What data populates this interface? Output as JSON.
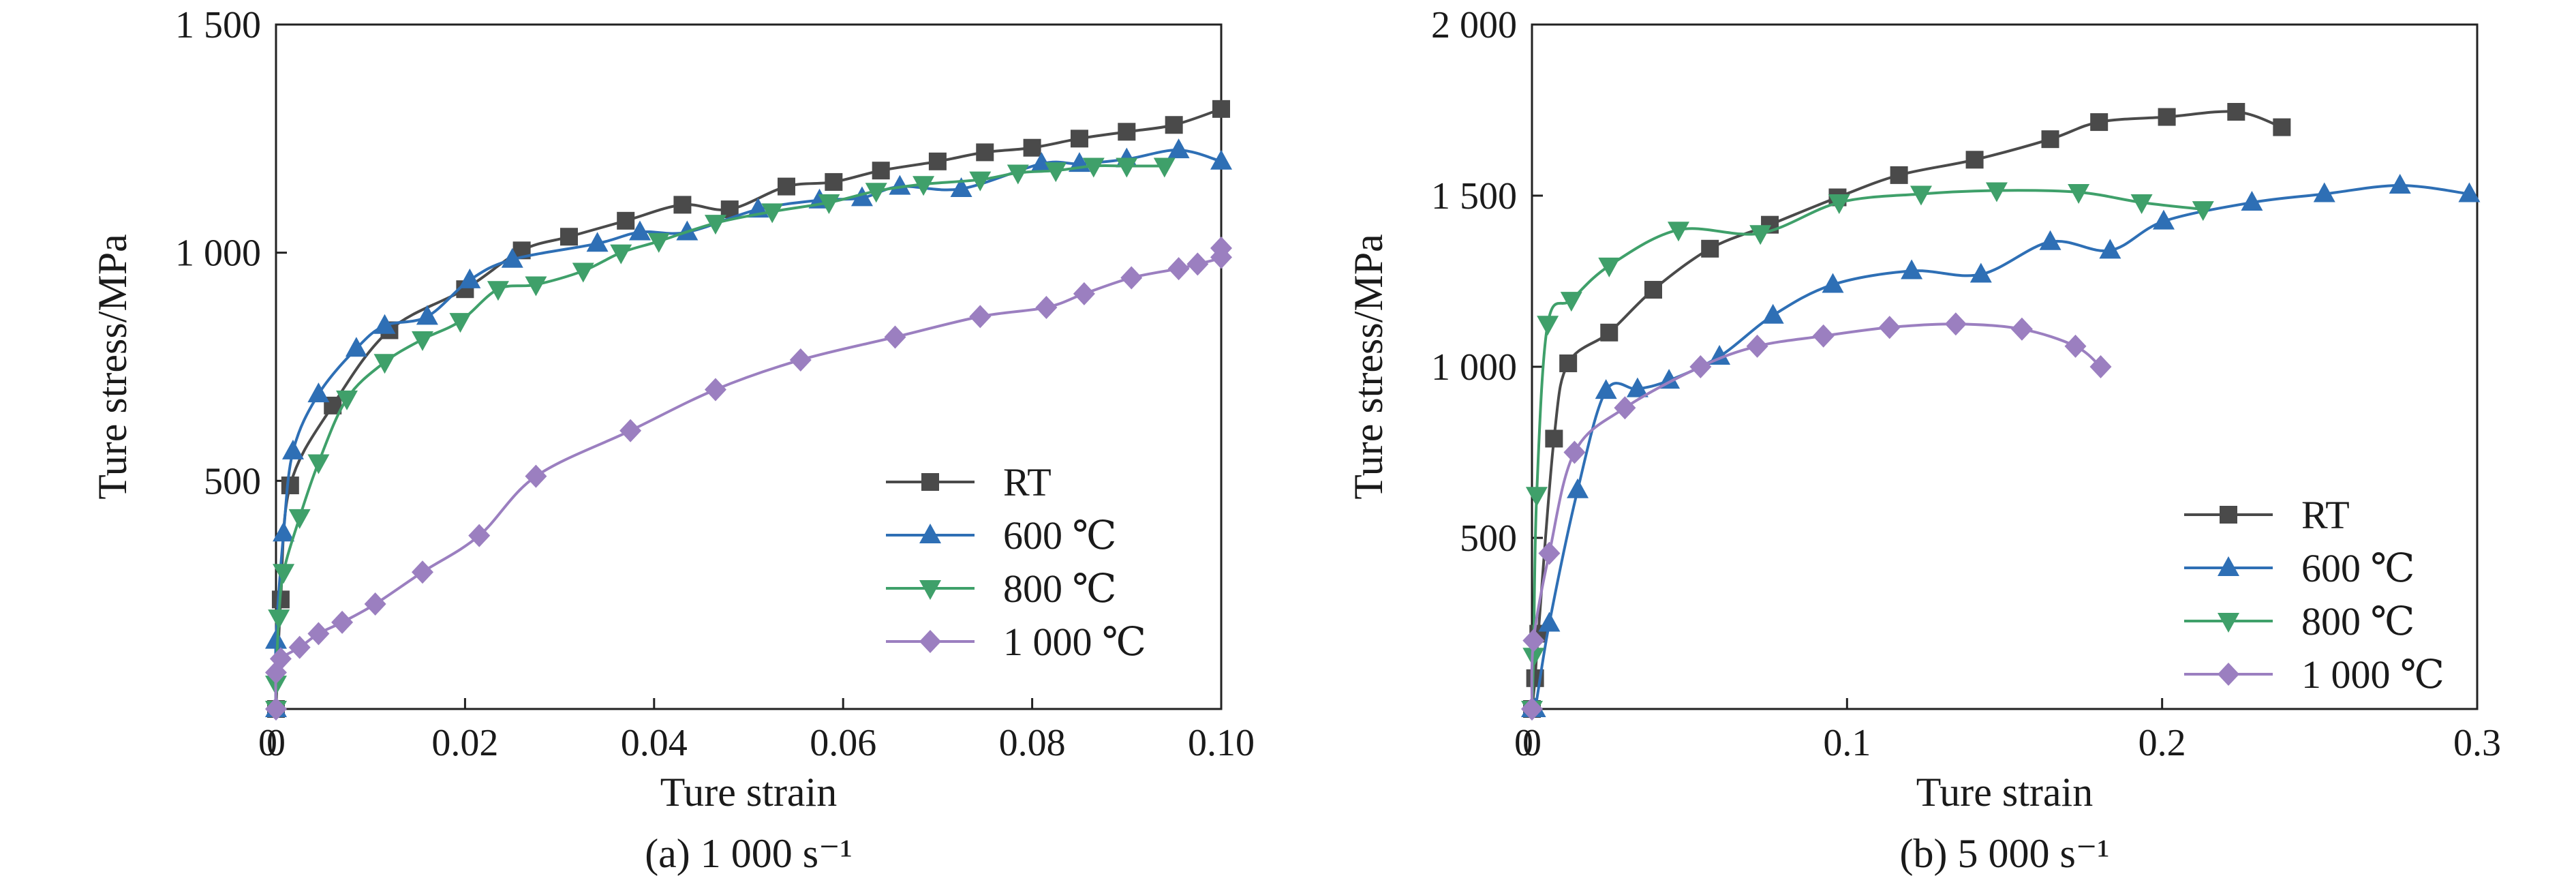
{
  "figure": {
    "captions": [
      "(a) 1 000 s⁻¹",
      "(b) 5 000 s⁻¹"
    ]
  },
  "chart_data": [
    {
      "type": "line",
      "caption": "(a) 1 000 s⁻¹",
      "xlabel": "Ture strain",
      "ylabel": "Ture stress/MPa",
      "xlim": [
        0,
        0.1
      ],
      "ylim": [
        0,
        1500
      ],
      "x_ticks": [
        0,
        0.02,
        0.04,
        0.06,
        0.08,
        0.1
      ],
      "x_tick_labels": [
        "0",
        "0.02",
        "0.04",
        "0.06",
        "0.08",
        "0.10"
      ],
      "y_ticks": [
        500,
        1000,
        1500
      ],
      "y_tick_labels": [
        "500",
        "1 000",
        "1 500"
      ],
      "grid": false,
      "legend_position": "bottom-right",
      "series": [
        {
          "name": "RT",
          "color": "#4a4a4a",
          "marker": "square",
          "points": [
            [
              0.0,
              0
            ],
            [
              0.0005,
              240
            ],
            [
              0.0015,
              490
            ],
            [
              0.006,
              665
            ],
            [
              0.012,
              830
            ],
            [
              0.02,
              920
            ],
            [
              0.026,
              1005
            ],
            [
              0.031,
              1035
            ],
            [
              0.037,
              1070
            ],
            [
              0.043,
              1105
            ],
            [
              0.048,
              1095
            ],
            [
              0.054,
              1145
            ],
            [
              0.059,
              1155
            ],
            [
              0.064,
              1180
            ],
            [
              0.07,
              1200
            ],
            [
              0.075,
              1220
            ],
            [
              0.08,
              1230
            ],
            [
              0.085,
              1250
            ],
            [
              0.09,
              1265
            ],
            [
              0.095,
              1280
            ],
            [
              0.1,
              1315
            ]
          ]
        },
        {
          "name": "600 ℃",
          "color": "#2e6fb5",
          "marker": "triangle-up",
          "points": [
            [
              0.0,
              0
            ],
            [
              0.0,
              150
            ],
            [
              0.0008,
              385
            ],
            [
              0.0018,
              565
            ],
            [
              0.0045,
              690
            ],
            [
              0.0085,
              790
            ],
            [
              0.0115,
              840
            ],
            [
              0.016,
              860
            ],
            [
              0.0205,
              940
            ],
            [
              0.025,
              985
            ],
            [
              0.034,
              1020
            ],
            [
              0.0385,
              1045
            ],
            [
              0.0435,
              1045
            ],
            [
              0.051,
              1095
            ],
            [
              0.0575,
              1115
            ],
            [
              0.062,
              1120
            ],
            [
              0.066,
              1145
            ],
            [
              0.0725,
              1140
            ],
            [
              0.081,
              1195
            ],
            [
              0.085,
              1195
            ],
            [
              0.09,
              1205
            ],
            [
              0.0955,
              1225
            ],
            [
              0.1,
              1200
            ]
          ]
        },
        {
          "name": "800 ℃",
          "color": "#3fa06a",
          "marker": "triangle-down",
          "points": [
            [
              0.0,
              0
            ],
            [
              0.0,
              55
            ],
            [
              0.0003,
              200
            ],
            [
              0.0008,
              300
            ],
            [
              0.0025,
              420
            ],
            [
              0.0045,
              540
            ],
            [
              0.0075,
              680
            ],
            [
              0.0115,
              760
            ],
            [
              0.0155,
              810
            ],
            [
              0.0195,
              850
            ],
            [
              0.0235,
              920
            ],
            [
              0.0275,
              930
            ],
            [
              0.0325,
              960
            ],
            [
              0.0365,
              1000
            ],
            [
              0.0405,
              1025
            ],
            [
              0.0465,
              1065
            ],
            [
              0.0525,
              1090
            ],
            [
              0.0585,
              1110
            ],
            [
              0.0635,
              1135
            ],
            [
              0.0685,
              1150
            ],
            [
              0.0745,
              1160
            ],
            [
              0.0785,
              1175
            ],
            [
              0.0825,
              1180
            ],
            [
              0.0865,
              1190
            ],
            [
              0.09,
              1190
            ],
            [
              0.094,
              1190
            ]
          ]
        },
        {
          "name": "1 000 ℃",
          "color": "#9b7fc0",
          "marker": "diamond",
          "points": [
            [
              0.0,
              0
            ],
            [
              0.0,
              80
            ],
            [
              0.0005,
              110
            ],
            [
              0.0025,
              135
            ],
            [
              0.0045,
              165
            ],
            [
              0.007,
              190
            ],
            [
              0.0105,
              230
            ],
            [
              0.0155,
              300
            ],
            [
              0.0215,
              380
            ],
            [
              0.0275,
              510
            ],
            [
              0.0375,
              610
            ],
            [
              0.0465,
              700
            ],
            [
              0.0555,
              765
            ],
            [
              0.0655,
              815
            ],
            [
              0.0745,
              860
            ],
            [
              0.0815,
              880
            ],
            [
              0.0855,
              910
            ],
            [
              0.0905,
              945
            ],
            [
              0.0955,
              965
            ],
            [
              0.0975,
              975
            ],
            [
              0.1,
              990
            ],
            [
              0.1,
              1010
            ]
          ]
        }
      ]
    },
    {
      "type": "line",
      "caption": "(b) 5 000 s⁻¹",
      "xlabel": "Ture strain",
      "ylabel": "Ture stress/MPa",
      "xlim": [
        0,
        0.3
      ],
      "ylim": [
        0,
        2000
      ],
      "x_ticks": [
        0,
        0.1,
        0.2,
        0.3
      ],
      "x_tick_labels": [
        "0",
        "0.1",
        "0.2",
        "0.3"
      ],
      "y_ticks": [
        500,
        1000,
        1500,
        2000
      ],
      "y_tick_labels": [
        "500",
        "1 000",
        "1 500",
        "2 000"
      ],
      "grid": false,
      "legend_position": "bottom-right",
      "series": [
        {
          "name": "RT",
          "color": "#4a4a4a",
          "marker": "square",
          "points": [
            [
              0.0,
              0
            ],
            [
              0.001,
              90
            ],
            [
              0.002,
              220
            ],
            [
              0.007,
              790
            ],
            [
              0.0115,
              1010
            ],
            [
              0.0245,
              1100
            ],
            [
              0.0385,
              1225
            ],
            [
              0.0565,
              1345
            ],
            [
              0.0755,
              1415
            ],
            [
              0.097,
              1495
            ],
            [
              0.1165,
              1560
            ],
            [
              0.1405,
              1605
            ],
            [
              0.1645,
              1665
            ],
            [
              0.18,
              1715
            ],
            [
              0.2015,
              1730
            ],
            [
              0.2235,
              1745
            ],
            [
              0.238,
              1700
            ]
          ]
        },
        {
          "name": "600 ℃",
          "color": "#2e6fb5",
          "marker": "triangle-up",
          "points": [
            [
              0.0,
              0
            ],
            [
              0.001,
              0
            ],
            [
              0.0055,
              250
            ],
            [
              0.0145,
              640
            ],
            [
              0.0235,
              930
            ],
            [
              0.0335,
              935
            ],
            [
              0.0435,
              960
            ],
            [
              0.0595,
              1030
            ],
            [
              0.0765,
              1150
            ],
            [
              0.0955,
              1240
            ],
            [
              0.1205,
              1280
            ],
            [
              0.1425,
              1270
            ],
            [
              0.1645,
              1365
            ],
            [
              0.1835,
              1340
            ],
            [
              0.2005,
              1425
            ],
            [
              0.2285,
              1480
            ],
            [
              0.2515,
              1505
            ],
            [
              0.2755,
              1530
            ],
            [
              0.2975,
              1505
            ]
          ]
        },
        {
          "name": "800 ℃",
          "color": "#3fa06a",
          "marker": "triangle-down",
          "points": [
            [
              0.0,
              0
            ],
            [
              0.0005,
              155
            ],
            [
              0.0015,
              625
            ],
            [
              0.005,
              1125
            ],
            [
              0.0125,
              1195
            ],
            [
              0.0245,
              1295
            ],
            [
              0.0465,
              1400
            ],
            [
              0.0725,
              1390
            ],
            [
              0.0975,
              1480
            ],
            [
              0.1235,
              1505
            ],
            [
              0.1475,
              1515
            ],
            [
              0.1735,
              1510
            ],
            [
              0.1935,
              1480
            ],
            [
              0.213,
              1460
            ]
          ]
        },
        {
          "name": "1 000 ℃",
          "color": "#9b7fc0",
          "marker": "diamond",
          "points": [
            [
              0.0,
              0
            ],
            [
              0.0005,
              200
            ],
            [
              0.0055,
              455
            ],
            [
              0.0135,
              750
            ],
            [
              0.0295,
              880
            ],
            [
              0.0535,
              1000
            ],
            [
              0.0715,
              1060
            ],
            [
              0.0925,
              1090
            ],
            [
              0.1135,
              1115
            ],
            [
              0.1345,
              1125
            ],
            [
              0.1555,
              1110
            ],
            [
              0.1725,
              1060
            ],
            [
              0.1805,
              1000
            ]
          ]
        }
      ]
    }
  ]
}
